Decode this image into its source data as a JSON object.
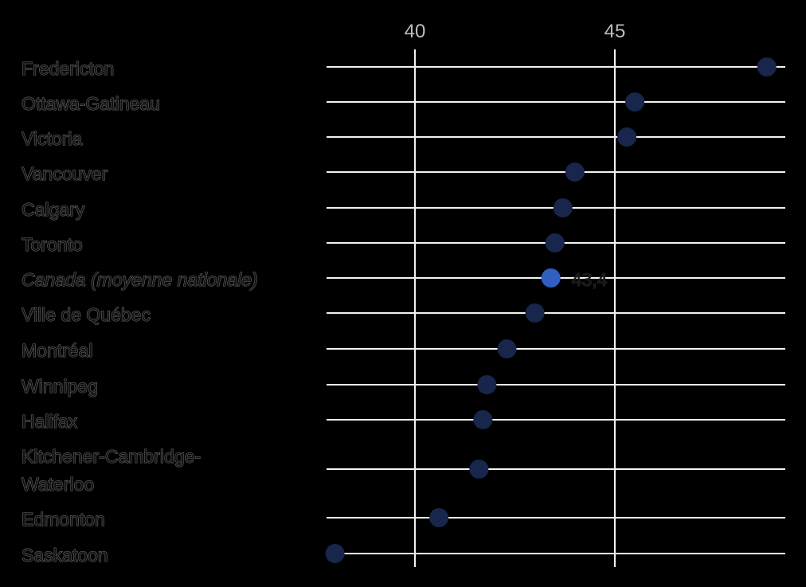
{
  "chart_data": {
    "type": "scatter",
    "title": "",
    "xlabel": "",
    "ylabel": "",
    "x_ticks": [
      40,
      45
    ],
    "xlim": [
      37.8,
      49.2
    ],
    "grid": true,
    "categories": [
      "Fredericton",
      "Ottawa-Gatineau",
      "Victoria",
      "Vancouver",
      "Calgary",
      "Toronto",
      "Canada (moyenne nationale)",
      "Ville de Québec",
      "Montréal",
      "Winnipeg",
      "Halifax",
      "Kitchener-Cambridge-Waterloo",
      "Edmonton",
      "Saskatoon"
    ],
    "category_lines": [
      [
        "Fredericton"
      ],
      [
        "Ottawa-Gatineau"
      ],
      [
        "Victoria"
      ],
      [
        "Vancouver"
      ],
      [
        "Calgary"
      ],
      [
        "Toronto"
      ],
      [
        "Canada (moyenne nationale)"
      ],
      [
        "Ville de Québec"
      ],
      [
        "Montréal"
      ],
      [
        "Winnipeg"
      ],
      [
        "Halifax"
      ],
      [
        "Kitchener-Cambridge-",
        "Waterloo"
      ],
      [
        "Edmonton"
      ],
      [
        "Saskatoon"
      ]
    ],
    "values": [
      48.8,
      45.5,
      45.3,
      44.0,
      43.7,
      43.5,
      43.4,
      43.0,
      42.3,
      41.8,
      41.7,
      41.6,
      40.6,
      38.0
    ],
    "highlight_index": 6,
    "data_labels": [
      {
        "index": 6,
        "text": "43,4"
      }
    ],
    "colors": {
      "highlight": "#2f5fbf",
      "dimmed": "#17264a",
      "grid": "#f2f2f2",
      "tick": "#bdbdbd"
    }
  }
}
